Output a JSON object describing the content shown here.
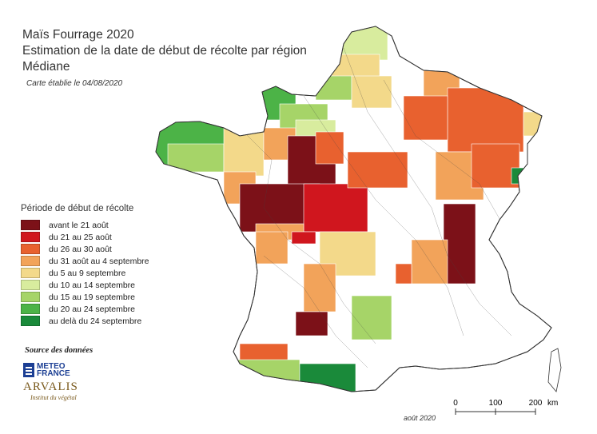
{
  "header": {
    "title_line1": "Maïs Fourrage 2020",
    "title_line2": "Estimation de la date de début de récolte par région",
    "title_line3": "Médiane",
    "map_date": "Carte établie le 04/08/2020"
  },
  "legend": {
    "title": "Période de début de récolte",
    "items": [
      {
        "label": "avant le 21 août",
        "color": "#7c1118"
      },
      {
        "label": "du 21 au 25 août",
        "color": "#d0161e"
      },
      {
        "label": "du 26 au 30 août",
        "color": "#e8612f"
      },
      {
        "label": "du 31 août au 4 septembre",
        "color": "#f2a35a"
      },
      {
        "label": "du 5 au 9 septembre",
        "color": "#f3d98a"
      },
      {
        "label": "du 10 au 14 septembre",
        "color": "#d8ec9e"
      },
      {
        "label": "du 15 au 19 septembre",
        "color": "#a6d468"
      },
      {
        "label": "du 20 au 24 septembre",
        "color": "#4cb347"
      },
      {
        "label": "au delà du 24 septembre",
        "color": "#1a8a3a"
      }
    ]
  },
  "sources": {
    "label": "Source des données",
    "meteo_line1": "METEO",
    "meteo_line2": "FRANCE",
    "arvalis_name": "ARVALIS",
    "arvalis_sub": "Institut du végétal"
  },
  "scale_bar": {
    "ticks": [
      "0",
      "100",
      "200"
    ],
    "unit": "km"
  },
  "footer": {
    "date": "août 2020"
  }
}
